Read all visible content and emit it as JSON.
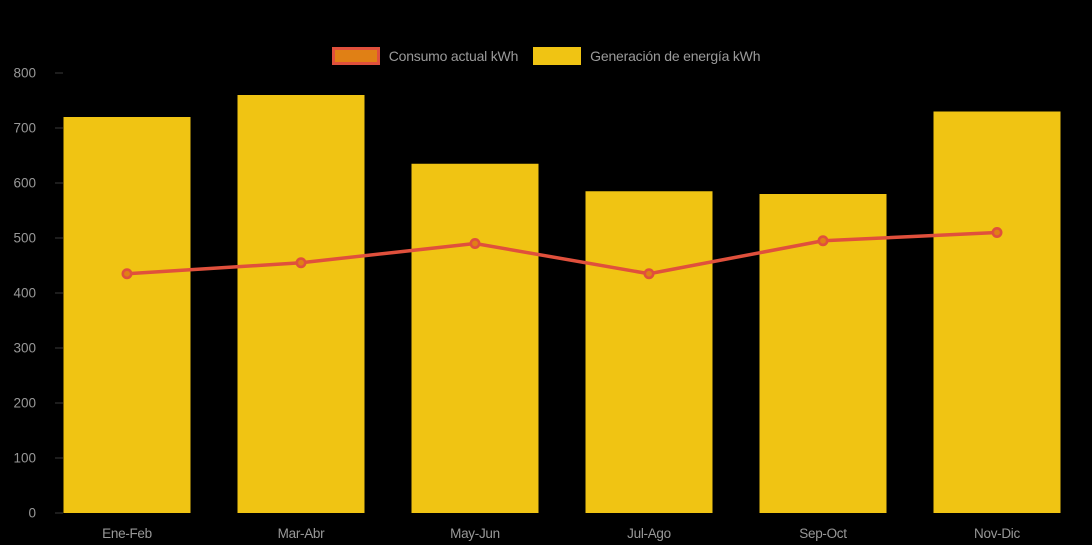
{
  "colors": {
    "background": "#000000",
    "bar_yellow": "#F0C413",
    "line_red": "#E0503C",
    "point_fill_orange": "#E08015",
    "axis_text": "#989898",
    "tick_mark": "#3a3a3a"
  },
  "legend": {
    "items": [
      {
        "label": "Consumo actual kWh",
        "swatch_fill": "#E08015",
        "swatch_border": "#E0503C"
      },
      {
        "label": "Generación de energía kWh",
        "swatch_fill": "#F0C413",
        "swatch_border": "#F0C413"
      }
    ]
  },
  "chart_data": {
    "type": "bar",
    "categories": [
      "Ene-Feb",
      "Mar-Abr",
      "May-Jun",
      "Jul-Ago",
      "Sep-Oct",
      "Nov-Dic"
    ],
    "series": [
      {
        "name": "Generación de energía kWh",
        "type": "bar",
        "values": [
          720,
          760,
          635,
          585,
          580,
          730
        ]
      },
      {
        "name": "Consumo actual kWh",
        "type": "line",
        "values": [
          435,
          455,
          490,
          435,
          495,
          510
        ]
      }
    ],
    "title": "",
    "xlabel": "",
    "ylabel": "",
    "ylim": [
      0,
      800
    ],
    "yticks": [
      0,
      100,
      200,
      300,
      400,
      500,
      600,
      700,
      800
    ],
    "grid": false,
    "legend_position": "top"
  }
}
